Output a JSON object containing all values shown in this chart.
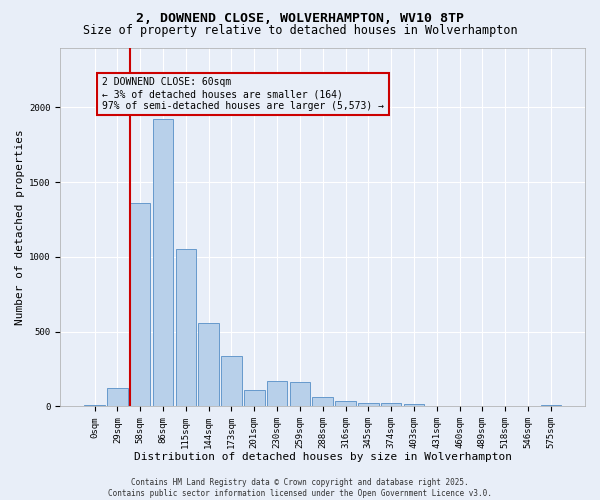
{
  "title_line1": "2, DOWNEND CLOSE, WOLVERHAMPTON, WV10 8TP",
  "title_line2": "Size of property relative to detached houses in Wolverhampton",
  "xlabel": "Distribution of detached houses by size in Wolverhampton",
  "ylabel": "Number of detached properties",
  "footer_line1": "Contains HM Land Registry data © Crown copyright and database right 2025.",
  "footer_line2": "Contains public sector information licensed under the Open Government Licence v3.0.",
  "bar_labels": [
    "0sqm",
    "29sqm",
    "58sqm",
    "86sqm",
    "115sqm",
    "144sqm",
    "173sqm",
    "201sqm",
    "230sqm",
    "259sqm",
    "288sqm",
    "316sqm",
    "345sqm",
    "374sqm",
    "403sqm",
    "431sqm",
    "460sqm",
    "489sqm",
    "518sqm",
    "546sqm",
    "575sqm"
  ],
  "bar_values": [
    10,
    125,
    1360,
    1920,
    1050,
    560,
    335,
    110,
    170,
    165,
    60,
    35,
    25,
    20,
    15,
    5,
    5,
    2,
    2,
    0,
    10
  ],
  "bar_color": "#b8d0ea",
  "bar_edge_color": "#6699cc",
  "vline_color": "#cc0000",
  "vline_x_index": 2,
  "annotation_text": "2 DOWNEND CLOSE: 60sqm\n← 3% of detached houses are smaller (164)\n97% of semi-detached houses are larger (5,573) →",
  "annotation_box_color": "#cc0000",
  "ylim": [
    0,
    2400
  ],
  "background_color": "#e8eef8",
  "grid_color": "#ffffff",
  "title_fontsize": 9.5,
  "subtitle_fontsize": 8.5,
  "axis_label_fontsize": 8,
  "tick_fontsize": 6.5,
  "annotation_fontsize": 7,
  "footer_fontsize": 5.5
}
